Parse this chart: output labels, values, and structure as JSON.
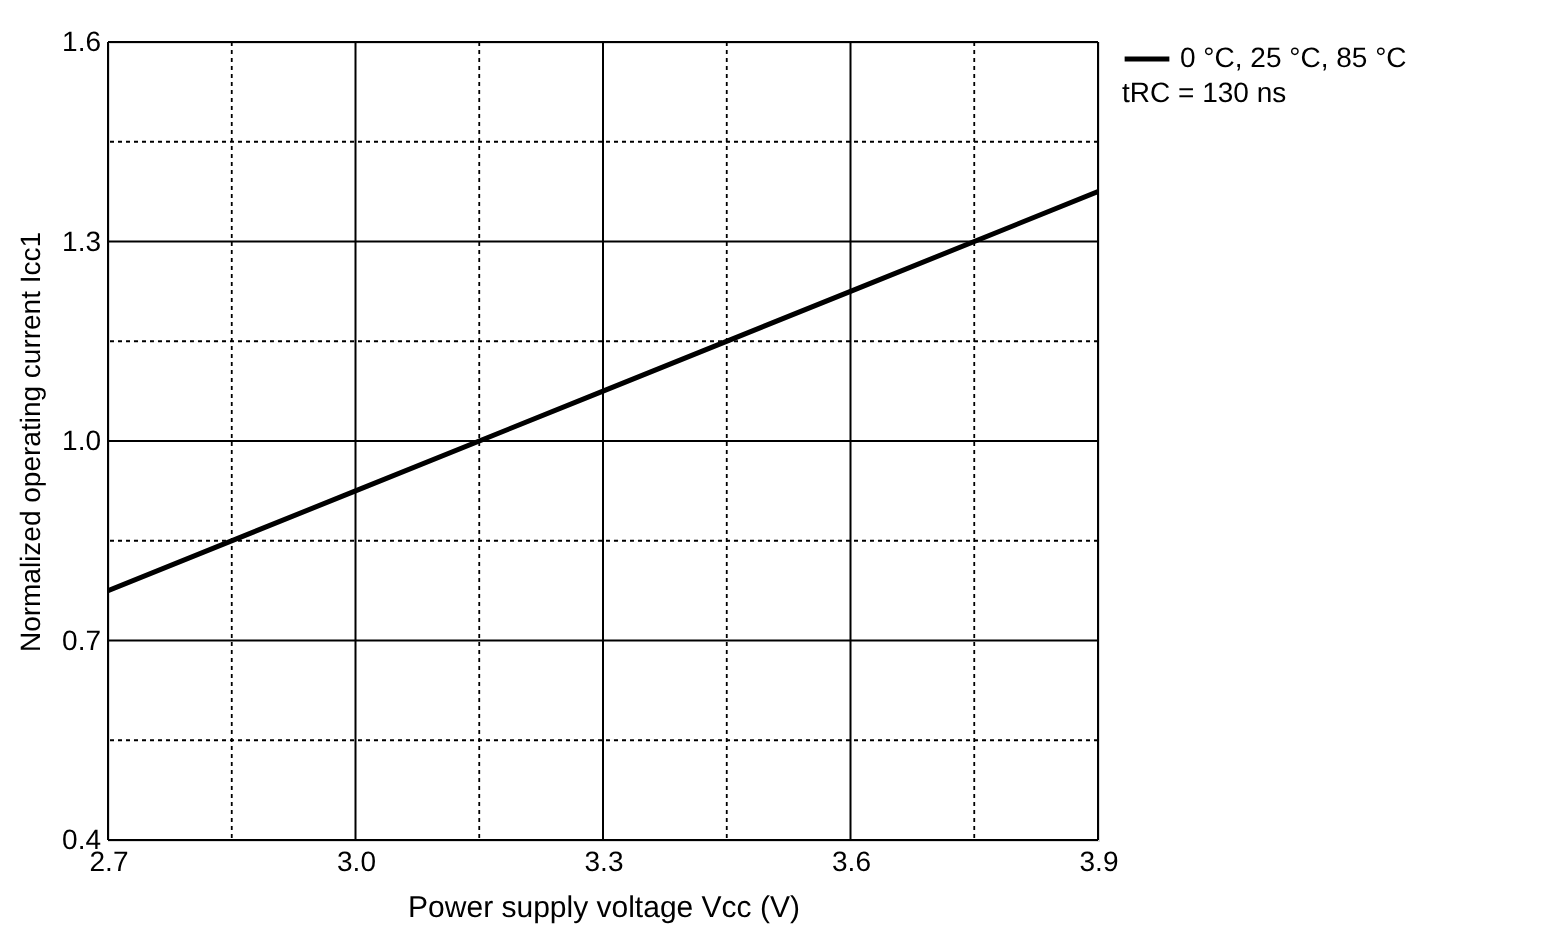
{
  "chart_data": {
    "type": "line",
    "xlabel": "Power supply voltage Vcc (V)",
    "ylabel": "Normalized operating current Icc1",
    "x": [
      2.7,
      3.0,
      3.3,
      3.6,
      3.9
    ],
    "series": [
      {
        "name": "0 °C, 25 °C, 85 °C",
        "color": "#000000",
        "values": [
          0.775,
          0.925,
          1.075,
          1.225,
          1.375
        ]
      }
    ],
    "xlim": [
      2.7,
      3.9
    ],
    "xticks": [
      2.7,
      {
        "value": 2.85,
        "label": null
      },
      {
        "value": 3.0,
        "label": "3.0"
      },
      {
        "value": 3.15,
        "label": null
      },
      3.3,
      {
        "value": 3.45,
        "label": null
      },
      3.6,
      {
        "value": 3.75,
        "label": null
      },
      3.9
    ],
    "ylim": [
      0.4,
      1.6
    ],
    "yticks": [
      0.4,
      {
        "value": 0.55,
        "label": null
      },
      0.7,
      {
        "value": 0.85,
        "label": null
      },
      {
        "value": 1.0,
        "label": "1.0"
      },
      {
        "value": 1.15,
        "label": null
      },
      1.3,
      {
        "value": 1.45,
        "label": null
      },
      1.6
    ],
    "grid": true,
    "legend": "top right",
    "line_style": "solid",
    "annotations": [
      "tRC = 130 ns"
    ]
  }
}
